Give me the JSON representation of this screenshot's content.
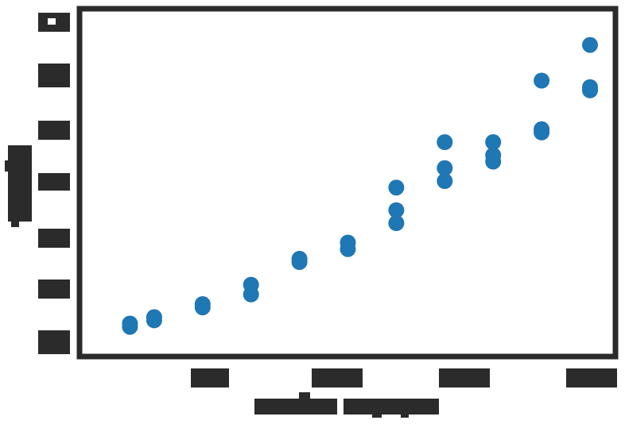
{
  "chart_data": {
    "type": "scatter",
    "title": "",
    "xlabel": "",
    "ylabel": "",
    "xticks": [],
    "yticks": [],
    "grid": false,
    "legend": "none",
    "colors": {
      "point": "#1f77b4",
      "frame": "#2b2b2b",
      "tick_block": "#2b2b2b",
      "background": "#ffffff"
    },
    "points": [
      {
        "x": 0.05,
        "y": 0.05
      },
      {
        "x": 0.05,
        "y": 0.06
      },
      {
        "x": 0.1,
        "y": 0.07
      },
      {
        "x": 0.1,
        "y": 0.08
      },
      {
        "x": 0.2,
        "y": 0.11
      },
      {
        "x": 0.2,
        "y": 0.12
      },
      {
        "x": 0.3,
        "y": 0.15
      },
      {
        "x": 0.3,
        "y": 0.18
      },
      {
        "x": 0.4,
        "y": 0.25
      },
      {
        "x": 0.4,
        "y": 0.26
      },
      {
        "x": 0.5,
        "y": 0.29
      },
      {
        "x": 0.5,
        "y": 0.31
      },
      {
        "x": 0.6,
        "y": 0.37
      },
      {
        "x": 0.6,
        "y": 0.41
      },
      {
        "x": 0.6,
        "y": 0.48
      },
      {
        "x": 0.7,
        "y": 0.5
      },
      {
        "x": 0.7,
        "y": 0.54
      },
      {
        "x": 0.7,
        "y": 0.62
      },
      {
        "x": 0.8,
        "y": 0.56
      },
      {
        "x": 0.8,
        "y": 0.58
      },
      {
        "x": 0.8,
        "y": 0.62
      },
      {
        "x": 0.9,
        "y": 0.65
      },
      {
        "x": 0.9,
        "y": 0.66
      },
      {
        "x": 0.9,
        "y": 0.81
      },
      {
        "x": 1.0,
        "y": 0.78
      },
      {
        "x": 1.0,
        "y": 0.79
      },
      {
        "x": 1.0,
        "y": 0.92
      }
    ],
    "xlim": [
      0.0,
      1.0
    ],
    "ylim": [
      0.0,
      1.0
    ]
  }
}
